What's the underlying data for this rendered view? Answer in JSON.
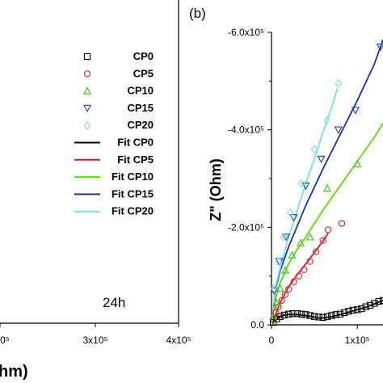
{
  "chart_data": [
    {
      "panel": "",
      "type": "scatter",
      "x_tick_labels": [
        "0⁵",
        "3x10⁵",
        "4x10⁵"
      ],
      "xlabel_fragment": "hm)",
      "annotation": "24h",
      "legend": {
        "placement": "top-right",
        "entries": [
          {
            "label": "CP0",
            "color": "#000000",
            "marker": "square"
          },
          {
            "label": "CP5",
            "color": "#e02020",
            "marker": "circle"
          },
          {
            "label": "CP10",
            "color": "#3cc01a",
            "marker": "triangle-up"
          },
          {
            "label": "CP15",
            "color": "#1f3fbf",
            "marker": "triangle-down"
          },
          {
            "label": "CP20",
            "color": "#7fe0d0",
            "marker": "diamond"
          },
          {
            "label": "Fit CP0",
            "color": "#000000",
            "marker": "line"
          },
          {
            "label": "Fit CP5",
            "color": "#d02020",
            "marker": "line"
          },
          {
            "label": "Fit CP10",
            "color": "#55e000",
            "marker": "line"
          },
          {
            "label": "Fit CP15",
            "color": "#1a2fb0",
            "marker": "line"
          },
          {
            "label": "Fit CP20",
            "color": "#6fe3d8",
            "marker": "line"
          }
        ]
      }
    },
    {
      "panel": "(b)",
      "type": "scatter",
      "ylabel": "Z\" (Ohm)",
      "y_tick_labels": [
        "0.0",
        "-2.0x10⁵",
        "-4.0x10⁵",
        "-6.0x10⁵"
      ],
      "x_tick_labels": [
        "0",
        "1x10⁵"
      ],
      "xlim": [
        0,
        130000
      ],
      "ylim": [
        0,
        600000
      ],
      "y_axis_inverted_sign": true,
      "series": [
        {
          "name": "CP0",
          "color": "#000000",
          "marker": "square",
          "x": [
            2000,
            6000,
            10000,
            15000,
            20000,
            25000,
            30000,
            35000,
            40000,
            45000,
            50000,
            55000,
            60000,
            65000,
            70000,
            75000,
            80000,
            85000,
            90000,
            95000,
            100000,
            105000,
            110000,
            115000,
            120000,
            125000,
            130000
          ],
          "y": [
            5000,
            12000,
            17000,
            20000,
            22000,
            23000,
            23000,
            22000,
            21000,
            19000,
            17000,
            16000,
            15000,
            17000,
            19000,
            21000,
            22000,
            25000,
            28000,
            30000,
            31000,
            33000,
            37000,
            40000,
            44000,
            48000,
            50000
          ]
        },
        {
          "name": "CP5",
          "color": "#e02020",
          "marker": "circle",
          "x": [
            2000,
            5000,
            8000,
            12000,
            16000,
            20000,
            26000,
            32000,
            38000,
            45000,
            52000,
            60000,
            66000,
            82000
          ],
          "y": [
            12000,
            25000,
            37000,
            50000,
            62000,
            73000,
            88000,
            100000,
            113000,
            130000,
            150000,
            173000,
            195000,
            208000
          ]
        },
        {
          "name": "CP10",
          "color": "#3cc01a",
          "marker": "triangle-up",
          "x": [
            2000,
            6000,
            10000,
            16000,
            24000,
            34000,
            45000,
            65000,
            100000
          ],
          "y": [
            18000,
            45000,
            75000,
            112000,
            143000,
            168000,
            180000,
            280000,
            330000
          ]
        },
        {
          "name": "CP15",
          "color": "#1f3fbf",
          "marker": "triangle-down",
          "x": [
            3000,
            9000,
            17000,
            26000,
            40000,
            58000,
            78000,
            98000,
            127000
          ],
          "y": [
            70000,
            130000,
            180000,
            220000,
            285000,
            340000,
            400000,
            440000,
            570000
          ]
        },
        {
          "name": "CP20",
          "color": "#7fe0d0",
          "marker": "diamond",
          "x": [
            3000,
            8000,
            14000,
            22000,
            35000,
            50000,
            65000,
            78000
          ],
          "y": [
            75000,
            130000,
            180000,
            230000,
            290000,
            360000,
            420000,
            495000
          ]
        }
      ],
      "fits": [
        {
          "name": "Fit CP0",
          "color": "#000000",
          "x": [
            0,
            5000,
            10000,
            15000,
            20000,
            30000,
            40000,
            50000,
            55000,
            60000,
            70000,
            80000,
            90000,
            100000,
            110000,
            120000,
            130000
          ],
          "y": [
            0,
            11000,
            17000,
            20000,
            21000,
            21000,
            19000,
            16000,
            14000,
            14000,
            17000,
            21000,
            26000,
            31000,
            36000,
            43000,
            50000
          ]
        },
        {
          "name": "Fit CP5",
          "color": "#d02020",
          "x": [
            0,
            10000,
            20000,
            30000,
            40000,
            50000,
            60000,
            66000
          ],
          "y": [
            0,
            45000,
            78000,
            103000,
            125000,
            148000,
            172000,
            188000
          ]
        },
        {
          "name": "Fit CP10",
          "color": "#55e000",
          "x": [
            0,
            5000,
            10000,
            20000,
            30000,
            40000,
            60000,
            80000,
            100000,
            120000,
            136000
          ],
          "y": [
            0,
            55000,
            85000,
            125000,
            155000,
            180000,
            235000,
            285000,
            335000,
            385000,
            430000
          ]
        },
        {
          "name": "Fit CP15",
          "color": "#1a2fb0",
          "x": [
            0,
            5000,
            10000,
            20000,
            40000,
            60000,
            80000,
            100000,
            120000,
            130000
          ],
          "y": [
            0,
            75000,
            110000,
            160000,
            245000,
            320000,
            390000,
            460000,
            535000,
            585000
          ]
        },
        {
          "name": "Fit CP20",
          "color": "#6fe3d8",
          "x": [
            0,
            5000,
            10000,
            20000,
            30000,
            40000,
            50000,
            60000,
            70000,
            77000
          ],
          "y": [
            0,
            80000,
            115000,
            180000,
            235000,
            290000,
            340000,
            395000,
            445000,
            485000
          ]
        }
      ]
    }
  ]
}
